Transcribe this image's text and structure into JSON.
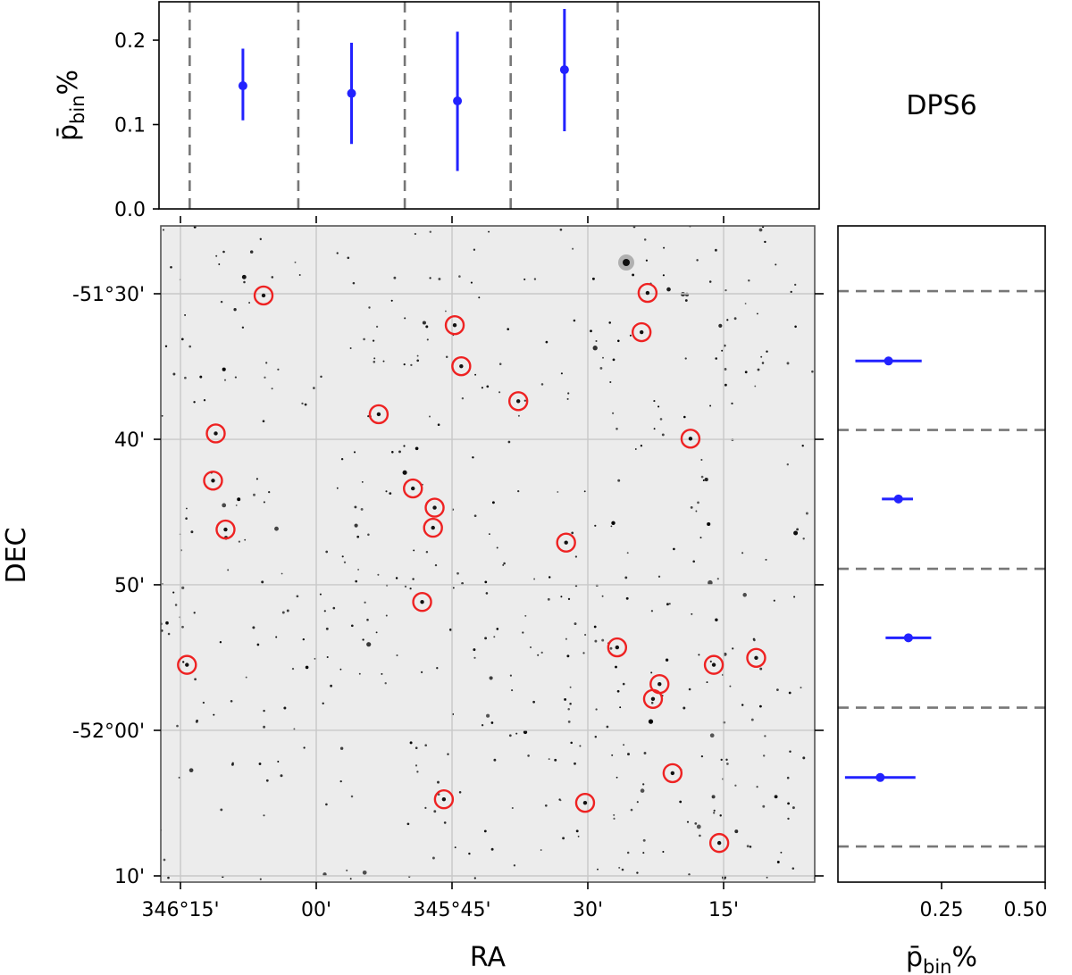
{
  "colors": {
    "points": "#2222ff",
    "bin_lines": "#777777",
    "circles": "#ee2222",
    "sky_background": "#ececec",
    "grid": "#c8c8c8"
  },
  "chart_data": [
    {
      "id": "top",
      "type": "scatter",
      "title": "",
      "xlabel": "",
      "ylabel": "p̄bin%",
      "ylabel_main": "p̄",
      "ylabel_sub": "bin",
      "ylabel_suffix": "%",
      "ylim": [
        0.0,
        0.25
      ],
      "yticks": [
        0.0,
        0.1,
        0.2
      ],
      "yticklabels": [
        "0.0",
        "0.1",
        "0.2"
      ],
      "bin_edges_ra_deg": [
        346.233,
        346.033,
        345.837,
        345.642,
        345.445
      ],
      "points": [
        {
          "ra_deg": 346.135,
          "value": 0.146,
          "err_low": 0.041,
          "err_high": 0.044
        },
        {
          "ra_deg": 345.935,
          "value": 0.137,
          "err_low": 0.06,
          "err_high": 0.06
        },
        {
          "ra_deg": 345.74,
          "value": 0.128,
          "err_low": 0.083,
          "err_high": 0.082
        },
        {
          "ra_deg": 345.543,
          "value": 0.165,
          "err_low": 0.073,
          "err_high": 0.072
        }
      ]
    },
    {
      "id": "sky",
      "type": "scatter",
      "title": "DPS6",
      "xlabel": "RA",
      "ylabel": "DEC",
      "x_tick_values_deg": [
        346.25,
        346.0,
        345.75,
        345.5,
        345.25
      ],
      "x_tick_labels": [
        "346°15'",
        "00'",
        "345°45'",
        "30'",
        "15'"
      ],
      "y_tick_values_arcmin": [
        -51.5,
        -51.6667,
        -51.8333,
        -52.0,
        -52.1667
      ],
      "y_tick_labels": [
        "-51°30'",
        "40'",
        "50'",
        "-52°00'",
        "10'"
      ],
      "circled_stars": [
        {
          "ra": 346.097,
          "dec": -51.502
        },
        {
          "ra": 345.745,
          "dec": -51.536
        },
        {
          "ra": 345.733,
          "dec": -51.583
        },
        {
          "ra": 345.628,
          "dec": -51.623
        },
        {
          "ra": 345.885,
          "dec": -51.638
        },
        {
          "ra": 346.185,
          "dec": -51.66
        },
        {
          "ra": 346.19,
          "dec": -51.714
        },
        {
          "ra": 346.167,
          "dec": -51.77
        },
        {
          "ra": 345.822,
          "dec": -51.723
        },
        {
          "ra": 345.782,
          "dec": -51.745
        },
        {
          "ra": 345.785,
          "dec": -51.768
        },
        {
          "ra": 345.54,
          "dec": -51.785
        },
        {
          "ra": 345.805,
          "dec": -51.853
        },
        {
          "ra": 345.39,
          "dec": -51.499
        },
        {
          "ra": 345.401,
          "dec": -51.544
        },
        {
          "ra": 345.311,
          "dec": -51.666
        },
        {
          "ra": 345.446,
          "dec": -51.905
        },
        {
          "ra": 345.368,
          "dec": -51.947
        },
        {
          "ra": 345.38,
          "dec": -51.964
        },
        {
          "ra": 345.268,
          "dec": -51.925
        },
        {
          "ra": 345.19,
          "dec": -51.917
        },
        {
          "ra": 346.238,
          "dec": -51.925
        },
        {
          "ra": 345.344,
          "dec": -52.049
        },
        {
          "ra": 345.505,
          "dec": -52.083
        },
        {
          "ra": 345.765,
          "dec": -52.079
        },
        {
          "ra": 345.258,
          "dec": -52.129
        }
      ]
    },
    {
      "id": "right",
      "type": "scatter",
      "title": "",
      "xlabel": "p̄bin%",
      "xlabel_main": "p̄",
      "xlabel_sub": "bin",
      "xlabel_suffix": "%",
      "xlim": [
        0.0,
        0.5
      ],
      "xticks": [
        0.25,
        0.5
      ],
      "xticklabels": [
        "0.25",
        "0.50"
      ],
      "bin_edges_dec_deg": [
        -51.497,
        -51.656,
        -51.815,
        -51.974,
        -52.133
      ],
      "points": [
        {
          "dec_deg": -51.577,
          "value": 0.122,
          "err_low": 0.08,
          "err_high": 0.08
        },
        {
          "dec_deg": -51.735,
          "value": 0.146,
          "err_low": 0.04,
          "err_high": 0.035
        },
        {
          "dec_deg": -51.894,
          "value": 0.17,
          "err_low": 0.055,
          "err_high": 0.055
        },
        {
          "dec_deg": -52.054,
          "value": 0.102,
          "err_low": 0.085,
          "err_high": 0.085
        }
      ]
    }
  ]
}
